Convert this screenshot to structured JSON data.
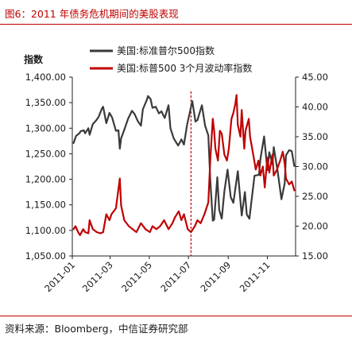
{
  "figure_title": "图6：2011 年债务危机期间的美股表现",
  "source_note": "资料来源：Bloomberg，中信证券研究部",
  "chart_data": {
    "type": "line",
    "left_axis_label": "指数",
    "left_ylim": [
      1050,
      1400
    ],
    "left_ticks": [
      "1,050.00",
      "1,100.00",
      "1,150.00",
      "1,200.00",
      "1,250.00",
      "1,300.00",
      "1,350.00",
      "1,400.00"
    ],
    "left_tick_values": [
      1050,
      1100,
      1150,
      1200,
      1250,
      1300,
      1350,
      1400
    ],
    "right_ylim": [
      15,
      45
    ],
    "right_ticks": [
      "15.00",
      "20.00",
      "25.00",
      "30.00",
      "35.00",
      "40.00",
      "45.00"
    ],
    "right_tick_values": [
      15,
      20,
      25,
      30,
      35,
      40,
      45
    ],
    "x_range": [
      "2011-01-01",
      "2011-12-15"
    ],
    "x_ticks": [
      "2011-01",
      "2011-03",
      "2011-05",
      "2011-07",
      "2011-09",
      "2011-11"
    ],
    "x_tick_dates": [
      "2011-01-01",
      "2011-03-01",
      "2011-05-01",
      "2011-07-01",
      "2011-09-01",
      "2011-11-01"
    ],
    "marker_date": "2011-07-05",
    "legend_position": "top-right",
    "grid": false,
    "series": [
      {
        "name": "美国:标准普尔500指数",
        "axis": "left",
        "color": "#3a3a3a",
        "points": [
          [
            "2011-01-03",
            1271
          ],
          [
            "2011-01-07",
            1285
          ],
          [
            "2011-01-12",
            1290
          ],
          [
            "2011-01-14",
            1294
          ],
          [
            "2011-01-19",
            1296
          ],
          [
            "2011-01-21",
            1290
          ],
          [
            "2011-01-26",
            1300
          ],
          [
            "2011-01-28",
            1287
          ],
          [
            "2011-02-02",
            1308
          ],
          [
            "2011-02-07",
            1315
          ],
          [
            "2011-02-11",
            1322
          ],
          [
            "2011-02-16",
            1338
          ],
          [
            "2011-02-18",
            1342
          ],
          [
            "2011-02-23",
            1310
          ],
          [
            "2011-02-28",
            1330
          ],
          [
            "2011-03-04",
            1321
          ],
          [
            "2011-03-10",
            1295
          ],
          [
            "2011-03-14",
            1296
          ],
          [
            "2011-03-16",
            1260
          ],
          [
            "2011-03-18",
            1280
          ],
          [
            "2011-03-23",
            1297
          ],
          [
            "2011-03-29",
            1319
          ],
          [
            "2011-04-04",
            1334
          ],
          [
            "2011-04-08",
            1328
          ],
          [
            "2011-04-13",
            1314
          ],
          [
            "2011-04-18",
            1305
          ],
          [
            "2011-04-21",
            1337
          ],
          [
            "2011-04-27",
            1355
          ],
          [
            "2011-04-29",
            1363
          ],
          [
            "2011-05-03",
            1357
          ],
          [
            "2011-05-06",
            1340
          ],
          [
            "2011-05-11",
            1342
          ],
          [
            "2011-05-16",
            1329
          ],
          [
            "2011-05-20",
            1333
          ],
          [
            "2011-05-25",
            1320
          ],
          [
            "2011-05-31",
            1345
          ],
          [
            "2011-06-03",
            1300
          ],
          [
            "2011-06-08",
            1280
          ],
          [
            "2011-06-15",
            1266
          ],
          [
            "2011-06-20",
            1278
          ],
          [
            "2011-06-24",
            1268
          ],
          [
            "2011-06-29",
            1307
          ],
          [
            "2011-07-07",
            1353
          ],
          [
            "2011-07-12",
            1313
          ],
          [
            "2011-07-15",
            1316
          ],
          [
            "2011-07-22",
            1345
          ],
          [
            "2011-07-27",
            1305
          ],
          [
            "2011-08-01",
            1286
          ],
          [
            "2011-08-04",
            1200
          ],
          [
            "2011-08-08",
            1119
          ],
          [
            "2011-08-10",
            1121
          ],
          [
            "2011-08-15",
            1204
          ],
          [
            "2011-08-18",
            1140
          ],
          [
            "2011-08-22",
            1123
          ],
          [
            "2011-08-26",
            1177
          ],
          [
            "2011-08-31",
            1219
          ],
          [
            "2011-09-05",
            1165
          ],
          [
            "2011-09-09",
            1154
          ],
          [
            "2011-09-16",
            1216
          ],
          [
            "2011-09-22",
            1129
          ],
          [
            "2011-09-27",
            1175
          ],
          [
            "2011-09-30",
            1131
          ],
          [
            "2011-10-04",
            1123
          ],
          [
            "2011-10-07",
            1155
          ],
          [
            "2011-10-12",
            1207
          ],
          [
            "2011-10-19",
            1209
          ],
          [
            "2011-10-21",
            1238
          ],
          [
            "2011-10-27",
            1284
          ],
          [
            "2011-11-01",
            1218
          ],
          [
            "2011-11-04",
            1253
          ],
          [
            "2011-11-09",
            1229
          ],
          [
            "2011-11-11",
            1263
          ],
          [
            "2011-11-17",
            1216
          ],
          [
            "2011-11-23",
            1161
          ],
          [
            "2011-11-28",
            1192
          ],
          [
            "2011-11-30",
            1247
          ],
          [
            "2011-12-05",
            1257
          ],
          [
            "2011-12-09",
            1255
          ],
          [
            "2011-12-13",
            1226
          ]
        ]
      },
      {
        "name": "美国:标普500 3个月波动率指数",
        "axis": "right",
        "color": "#c00000",
        "points": [
          [
            "2011-01-03",
            19.5
          ],
          [
            "2011-01-06",
            20.0
          ],
          [
            "2011-01-10",
            19.0
          ],
          [
            "2011-01-13",
            18.5
          ],
          [
            "2011-01-18",
            19.5
          ],
          [
            "2011-01-21",
            19.0
          ],
          [
            "2011-01-26",
            18.8
          ],
          [
            "2011-01-28",
            21.0
          ],
          [
            "2011-02-02",
            19.5
          ],
          [
            "2011-02-08",
            19.0
          ],
          [
            "2011-02-14",
            18.8
          ],
          [
            "2011-02-18",
            19.0
          ],
          [
            "2011-02-23",
            22.0
          ],
          [
            "2011-02-28",
            21.0
          ],
          [
            "2011-03-03",
            22.0
          ],
          [
            "2011-03-10",
            23.0
          ],
          [
            "2011-03-16",
            28.0
          ],
          [
            "2011-03-18",
            23.5
          ],
          [
            "2011-03-23",
            21.0
          ],
          [
            "2011-03-30",
            20.0
          ],
          [
            "2011-04-05",
            19.5
          ],
          [
            "2011-04-11",
            19.0
          ],
          [
            "2011-04-18",
            20.5
          ],
          [
            "2011-04-25",
            19.5
          ],
          [
            "2011-05-02",
            19.0
          ],
          [
            "2011-05-06",
            20.0
          ],
          [
            "2011-05-12",
            19.5
          ],
          [
            "2011-05-18",
            20.0
          ],
          [
            "2011-05-24",
            21.0
          ],
          [
            "2011-05-31",
            19.5
          ],
          [
            "2011-06-06",
            20.5
          ],
          [
            "2011-06-10",
            21.5
          ],
          [
            "2011-06-16",
            22.5
          ],
          [
            "2011-06-20",
            21.0
          ],
          [
            "2011-06-24",
            22.0
          ],
          [
            "2011-06-30",
            19.5
          ],
          [
            "2011-07-05",
            19.0
          ],
          [
            "2011-07-11",
            20.0
          ],
          [
            "2011-07-15",
            21.0
          ],
          [
            "2011-07-20",
            20.5
          ],
          [
            "2011-07-26",
            22.0
          ],
          [
            "2011-08-01",
            24.0
          ],
          [
            "2011-08-04",
            31.0
          ],
          [
            "2011-08-08",
            38.0
          ],
          [
            "2011-08-10",
            36.0
          ],
          [
            "2011-08-12",
            33.0
          ],
          [
            "2011-08-16",
            31.0
          ],
          [
            "2011-08-19",
            36.0
          ],
          [
            "2011-08-22",
            35.5
          ],
          [
            "2011-08-26",
            32.0
          ],
          [
            "2011-08-30",
            31.0
          ],
          [
            "2011-09-02",
            33.0
          ],
          [
            "2011-09-06",
            38.0
          ],
          [
            "2011-09-09",
            39.0
          ],
          [
            "2011-09-12",
            40.5
          ],
          [
            "2011-09-14",
            42.0
          ],
          [
            "2011-09-16",
            37.0
          ],
          [
            "2011-09-20",
            35.0
          ],
          [
            "2011-09-22",
            39.5
          ],
          [
            "2011-09-26",
            33.0
          ],
          [
            "2011-09-28",
            36.0
          ],
          [
            "2011-10-03",
            38.0
          ],
          [
            "2011-10-05",
            35.0
          ],
          [
            "2011-10-10",
            32.0
          ],
          [
            "2011-10-14",
            29.5
          ],
          [
            "2011-10-18",
            31.0
          ],
          [
            "2011-10-21",
            28.5
          ],
          [
            "2011-10-25",
            30.0
          ],
          [
            "2011-10-28",
            26.5
          ],
          [
            "2011-11-01",
            31.5
          ],
          [
            "2011-11-04",
            29.0
          ],
          [
            "2011-11-09",
            32.0
          ],
          [
            "2011-11-11",
            28.5
          ],
          [
            "2011-11-16",
            29.5
          ],
          [
            "2011-11-21",
            31.0
          ],
          [
            "2011-11-25",
            32.5
          ],
          [
            "2011-11-28",
            30.5
          ],
          [
            "2011-11-30",
            28.0
          ],
          [
            "2011-12-05",
            27.0
          ],
          [
            "2011-12-09",
            27.5
          ],
          [
            "2011-12-13",
            26.0
          ]
        ]
      }
    ]
  }
}
